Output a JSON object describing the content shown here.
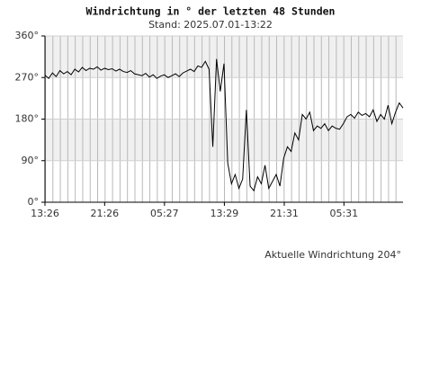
{
  "chart_data": {
    "type": "line",
    "title": "Windrichtung in ° der letzten 48 Stunden",
    "subtitle": "Stand: 2025.07.01-13:22",
    "annotation": "Aktuelle Windrichtung 204°",
    "x": [
      0,
      0.5,
      1,
      1.5,
      2,
      2.5,
      3,
      3.5,
      4,
      4.5,
      5,
      5.5,
      6,
      6.5,
      7,
      7.5,
      8,
      8.5,
      9,
      9.5,
      10,
      10.5,
      11,
      11.5,
      12,
      12.5,
      13,
      13.5,
      14,
      14.5,
      15,
      15.5,
      16,
      16.5,
      17,
      17.5,
      18,
      18.5,
      19,
      19.5,
      20,
      20.5,
      21,
      21.5,
      22,
      22.5,
      23,
      23.5,
      24,
      24.5,
      25,
      25.5,
      26,
      26.5,
      27,
      27.5,
      28,
      28.5,
      29,
      29.5,
      30,
      30.5,
      31,
      31.5,
      32,
      32.5,
      33,
      33.5,
      34,
      34.5,
      35,
      35.5,
      36,
      36.5,
      37,
      37.5,
      38,
      38.5,
      39,
      39.5,
      40,
      40.5,
      41,
      41.5,
      42,
      42.5,
      43,
      43.5,
      44,
      44.5,
      45,
      45.5,
      46,
      46.5,
      47,
      47.5,
      48
    ],
    "series": [
      {
        "color": "#000000",
        "values": [
          275,
          268,
          280,
          272,
          285,
          278,
          283,
          276,
          288,
          282,
          292,
          285,
          290,
          288,
          293,
          286,
          290,
          287,
          289,
          284,
          288,
          283,
          281,
          285,
          278,
          276,
          274,
          279,
          271,
          276,
          268,
          273,
          276,
          270,
          274,
          278,
          272,
          280,
          284,
          288,
          283,
          295,
          292,
          305,
          288,
          120,
          310,
          240,
          300,
          85,
          40,
          60,
          30,
          50,
          200,
          35,
          25,
          55,
          40,
          80,
          30,
          45,
          60,
          35,
          95,
          120,
          110,
          150,
          135,
          190,
          180,
          195,
          155,
          165,
          160,
          170,
          155,
          165,
          160,
          158,
          170,
          185,
          190,
          182,
          195,
          188,
          192,
          185,
          200,
          175,
          190,
          180,
          210,
          170,
          195,
          215,
          204
        ]
      }
    ],
    "xlim": [
      0,
      48
    ],
    "xticks": [
      {
        "value": 0,
        "label": "13:26"
      },
      {
        "value": 8,
        "label": "21:26"
      },
      {
        "value": 16.02,
        "label": "05:27"
      },
      {
        "value": 24.05,
        "label": "13:29"
      },
      {
        "value": 32.08,
        "label": "21:31"
      },
      {
        "value": 40.08,
        "label": "05:31"
      }
    ],
    "ylim": [
      0,
      360
    ],
    "yticks": [
      {
        "value": 0,
        "label": "0°"
      },
      {
        "value": 90,
        "label": "90°"
      },
      {
        "value": 180,
        "label": "180°"
      },
      {
        "value": 270,
        "label": "270°"
      },
      {
        "value": 360,
        "label": "360°"
      }
    ],
    "band_color": "#f0f0f0"
  }
}
